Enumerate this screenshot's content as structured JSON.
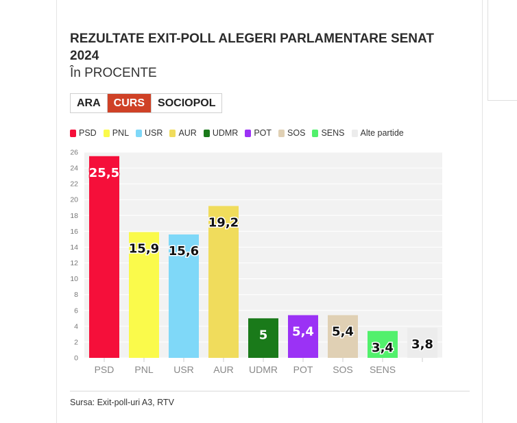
{
  "chart_title": "REZULTATE EXIT-POLL ALEGERI PARLAMENTARE SENAT 2024",
  "chart_subtitle": "În PROCENTE",
  "tabs": [
    {
      "label": "ARA",
      "active": false
    },
    {
      "label": "CURS",
      "active": true
    },
    {
      "label": "SOCIOPOL",
      "active": false
    }
  ],
  "source": "Sursa: Exit-poll-uri A3, RTV",
  "chart_data": {
    "type": "bar",
    "title": "REZULTATE EXIT-POLL ALEGERI PARLAMENTARE SENAT 2024",
    "subtitle": "În PROCENTE",
    "categories": [
      "PSD",
      "PNL",
      "USR",
      "AUR",
      "UDMR",
      "POT",
      "SOS",
      "SENS",
      ""
    ],
    "values": [
      25.5,
      15.9,
      15.6,
      19.2,
      5,
      5.4,
      5.4,
      3.4,
      3.8
    ],
    "value_labels": [
      "25,5",
      "15,9",
      "15,6",
      "19,2",
      "5",
      "5,4",
      "5,4",
      "3,4",
      "3,8"
    ],
    "colors": [
      "#f50f3a",
      "#fafa4b",
      "#7fd8f8",
      "#f0dc5c",
      "#1a7a1a",
      "#9b32f5",
      "#e0d0b4",
      "#52f06c",
      "#ececec"
    ],
    "label_colors": [
      "#ffffff",
      "#111111",
      "#111111",
      "#111111",
      "#ffffff",
      "#ffffff",
      "#111111",
      "#111111",
      "#111111"
    ],
    "legend": [
      {
        "name": "PSD",
        "color": "#f50f3a"
      },
      {
        "name": "PNL",
        "color": "#fafa4b"
      },
      {
        "name": "USR",
        "color": "#7fd8f8"
      },
      {
        "name": "AUR",
        "color": "#f0dc5c"
      },
      {
        "name": "UDMR",
        "color": "#1a7a1a"
      },
      {
        "name": "POT",
        "color": "#9b32f5"
      },
      {
        "name": "SOS",
        "color": "#e0d0b4"
      },
      {
        "name": "SENS",
        "color": "#52f06c"
      },
      {
        "name": "Alte partide",
        "color": "#ececec"
      }
    ],
    "yticks": [
      0,
      2,
      4,
      6,
      8,
      10,
      12,
      14,
      16,
      18,
      20,
      22,
      24,
      26
    ],
    "ylim": [
      0,
      26
    ],
    "grid": true,
    "legend_position": "top-left",
    "xlabel": "",
    "ylabel": ""
  }
}
